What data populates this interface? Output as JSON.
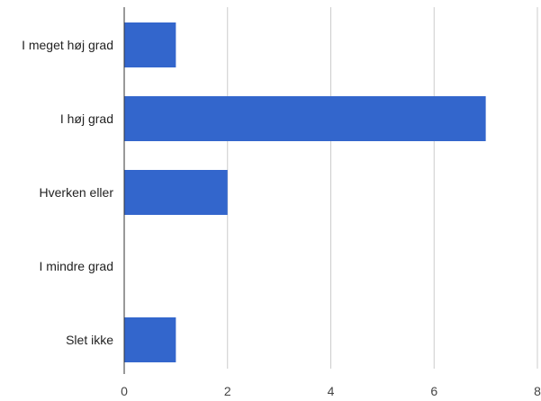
{
  "chart_data": {
    "type": "bar",
    "orientation": "horizontal",
    "categories": [
      "I meget høj grad",
      "I høj grad",
      "Hverken eller",
      "I mindre grad",
      "Slet ikke"
    ],
    "values": [
      1,
      7,
      2,
      0,
      1
    ],
    "xlim": [
      0,
      8
    ],
    "x_ticks": [
      0,
      2,
      4,
      6,
      8
    ],
    "title": "",
    "xlabel": "",
    "ylabel": "",
    "grid": true,
    "bar_color": "#3366cc",
    "grid_color": "#cccccc",
    "axis_color": "#333333"
  }
}
